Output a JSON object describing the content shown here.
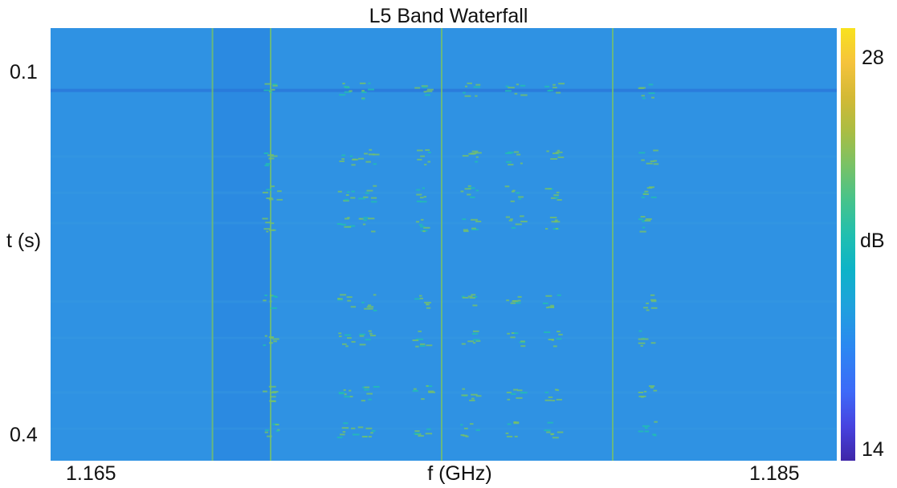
{
  "chart_data": {
    "type": "heatmap",
    "title": "L5 Band Waterfall",
    "xlabel": "f (GHz)",
    "ylabel": "t (s)",
    "x_ticks": [
      "1.165",
      "1.185"
    ],
    "x_tick_values": [
      1.165,
      1.185
    ],
    "y_ticks": [
      "0.1",
      "0.4"
    ],
    "y_tick_values": [
      0.1,
      0.4
    ],
    "colorbar": {
      "label": "dB",
      "ticks": [
        "28",
        "14"
      ],
      "range": [
        14,
        28
      ],
      "colormap": "parula"
    },
    "background_level_db": 19.5,
    "features": {
      "narrowband_lines_ghz": [
        1.1683,
        1.17,
        1.175,
        1.18
      ],
      "signal_columns_ghz": [
        1.17,
        1.1722,
        1.1728,
        1.1744,
        1.1758,
        1.1771,
        1.1782,
        1.181
      ],
      "burst_rows_s": [
        0.115,
        0.17,
        0.2,
        0.225,
        0.29,
        0.32,
        0.365,
        0.395
      ]
    }
  }
}
